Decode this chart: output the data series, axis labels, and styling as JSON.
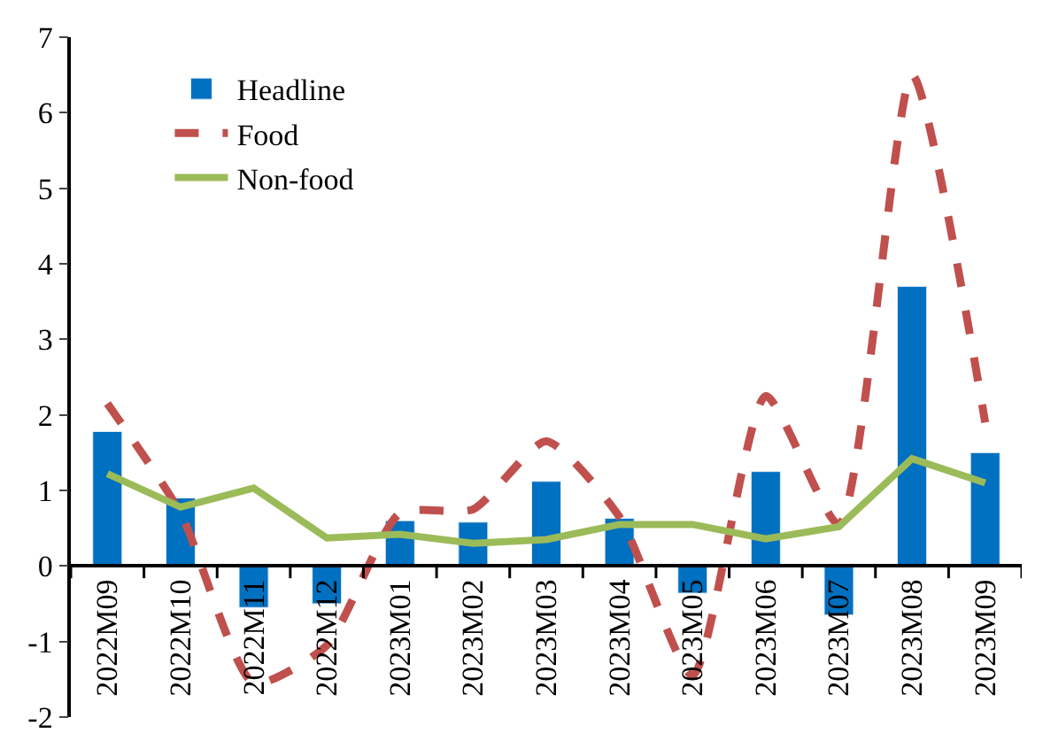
{
  "chart_data": {
    "type": "bar",
    "categories": [
      "2022M09",
      "2022M10",
      "2022M11",
      "2022M12",
      "2023M01",
      "2023M02",
      "2023M03",
      "2023M04",
      "2023M05",
      "2023M06",
      "2023M07",
      "2023M08",
      "2023M09"
    ],
    "series": [
      {
        "name": "Headline",
        "color": "#0070c0",
        "values": [
          1.78,
          0.9,
          -0.55,
          -0.5,
          0.6,
          0.58,
          1.12,
          0.63,
          -0.36,
          1.25,
          -0.65,
          3.7,
          1.5
        ]
      },
      {
        "name": "Food",
        "type": "line",
        "line_style": "dashed",
        "color": "#c0504d",
        "values": [
          2.15,
          0.7,
          -1.55,
          -1.05,
          0.7,
          0.75,
          1.65,
          0.65,
          -1.45,
          2.25,
          0.55,
          6.5,
          1.9
        ]
      },
      {
        "name": "Non-food",
        "type": "line",
        "line_style": "solid",
        "color": "#9bbb59",
        "values": [
          1.22,
          0.78,
          1.03,
          0.37,
          0.42,
          0.3,
          0.35,
          0.55,
          0.55,
          0.36,
          0.52,
          1.42,
          1.1
        ]
      }
    ],
    "ylim": [
      -2,
      7
    ],
    "yticks": [
      -2,
      -1,
      0,
      1,
      2,
      3,
      4,
      5,
      6,
      7
    ],
    "legend": "top left",
    "marker": "none"
  }
}
